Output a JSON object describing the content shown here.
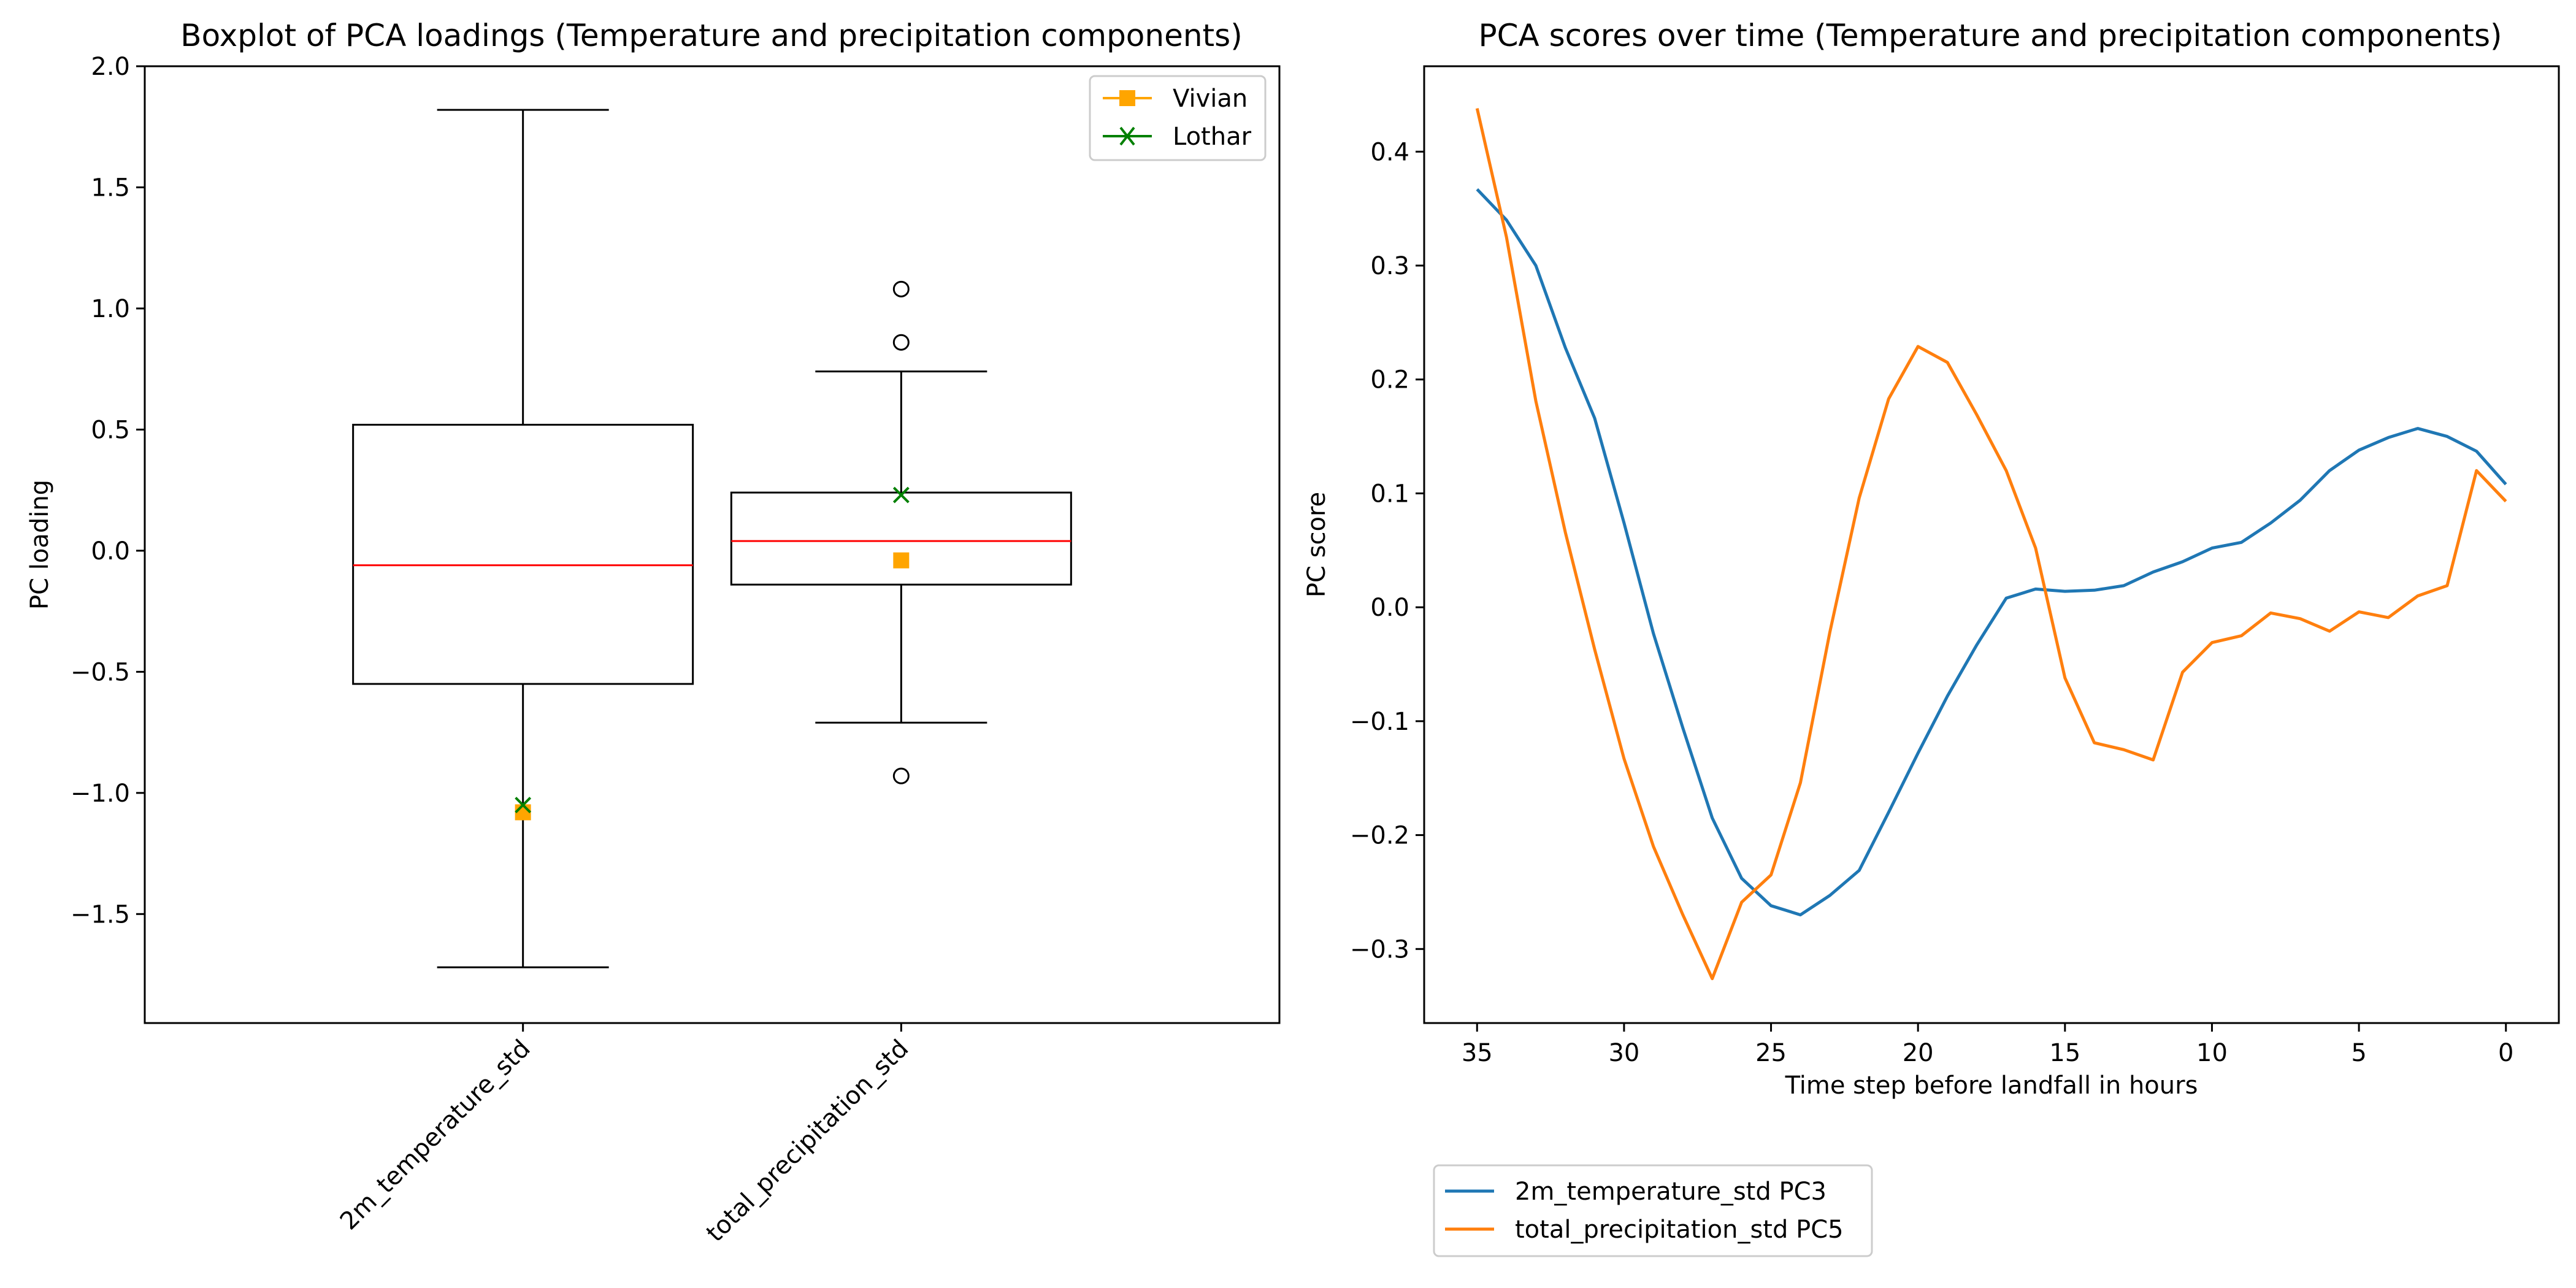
{
  "chart_data": [
    {
      "type": "box",
      "title": "Boxplot of PCA loadings (Temperature and precipitation components)",
      "xlabel": "",
      "ylabel": "PC loading",
      "ylim": [
        -1.95,
        2.0
      ],
      "yticks": [
        -1.5,
        -1.0,
        -0.5,
        0.0,
        0.5,
        1.0,
        1.5,
        2.0
      ],
      "ytick_labels": [
        "−1.5",
        "−1.0",
        "−0.5",
        "0.0",
        "0.5",
        "1.0",
        "1.5",
        "2.0"
      ],
      "categories": [
        "2m_temperature_std",
        "total_precipitation_std"
      ],
      "boxes": [
        {
          "name": "2m_temperature_std",
          "whisker_low": -1.72,
          "q1": -0.55,
          "median": -0.06,
          "q3": 0.52,
          "whisker_high": 1.82,
          "outliers": []
        },
        {
          "name": "total_precipitation_std",
          "whisker_low": -0.71,
          "q1": -0.14,
          "median": 0.04,
          "q3": 0.24,
          "whisker_high": 0.74,
          "outliers": [
            1.08,
            0.86,
            -0.93
          ]
        }
      ],
      "overlay_series": [
        {
          "name": "Vivian",
          "color": "#ffa500",
          "marker": "square",
          "values": [
            -1.08,
            -0.04
          ]
        },
        {
          "name": "Lothar",
          "color": "#008000",
          "marker": "x",
          "values": [
            -1.05,
            0.23
          ]
        }
      ],
      "legend_position": "top-right",
      "grid": false
    },
    {
      "type": "line",
      "title": "PCA scores over time (Temperature and precipitation components)",
      "xlabel": "Time step before landfall in hours",
      "ylabel": "PC score",
      "xlim": [
        36.8,
        -1.8
      ],
      "ylim": [
        -0.365,
        0.475
      ],
      "xticks": [
        35,
        30,
        25,
        20,
        15,
        10,
        5,
        0
      ],
      "xtick_labels": [
        "35",
        "30",
        "25",
        "20",
        "15",
        "10",
        "5",
        "0"
      ],
      "yticks": [
        -0.3,
        -0.2,
        -0.1,
        0.0,
        0.1,
        0.2,
        0.3,
        0.4
      ],
      "ytick_labels": [
        "−0.3",
        "−0.2",
        "−0.1",
        "0.0",
        "0.1",
        "0.2",
        "0.3",
        "0.4"
      ],
      "x": [
        35,
        34,
        33,
        32,
        31,
        30,
        29,
        28,
        27,
        26,
        25,
        24,
        23,
        22,
        21,
        20,
        19,
        18,
        17,
        16,
        15,
        14,
        13,
        12,
        11,
        10,
        9,
        8,
        7,
        6,
        5,
        4,
        3,
        2,
        1,
        0
      ],
      "series": [
        {
          "name": "2m_temperature_std PC3",
          "color": "#1f77b4",
          "values": [
            0.367,
            0.34,
            0.3,
            0.228,
            0.166,
            0.074,
            -0.023,
            -0.106,
            -0.185,
            -0.238,
            -0.262,
            -0.27,
            -0.253,
            -0.231,
            -0.18,
            -0.128,
            -0.078,
            -0.033,
            0.008,
            0.016,
            0.014,
            0.015,
            0.019,
            0.031,
            0.04,
            0.052,
            0.057,
            0.074,
            0.094,
            0.12,
            0.138,
            0.149,
            0.157,
            0.15,
            0.137,
            0.108
          ]
        },
        {
          "name": "total_precipitation_std PC5",
          "color": "#ff7f0e",
          "values": [
            0.438,
            0.325,
            0.181,
            0.066,
            -0.037,
            -0.133,
            -0.21,
            -0.27,
            -0.326,
            -0.259,
            -0.235,
            -0.154,
            -0.022,
            0.096,
            0.183,
            0.229,
            0.215,
            0.169,
            0.12,
            0.052,
            -0.062,
            -0.119,
            -0.125,
            -0.134,
            -0.057,
            -0.031,
            -0.025,
            -0.005,
            -0.01,
            -0.021,
            -0.004,
            -0.009,
            0.01,
            0.019,
            0.12,
            0.093
          ]
        }
      ],
      "legend_position": "below plot, left",
      "grid": false
    }
  ]
}
